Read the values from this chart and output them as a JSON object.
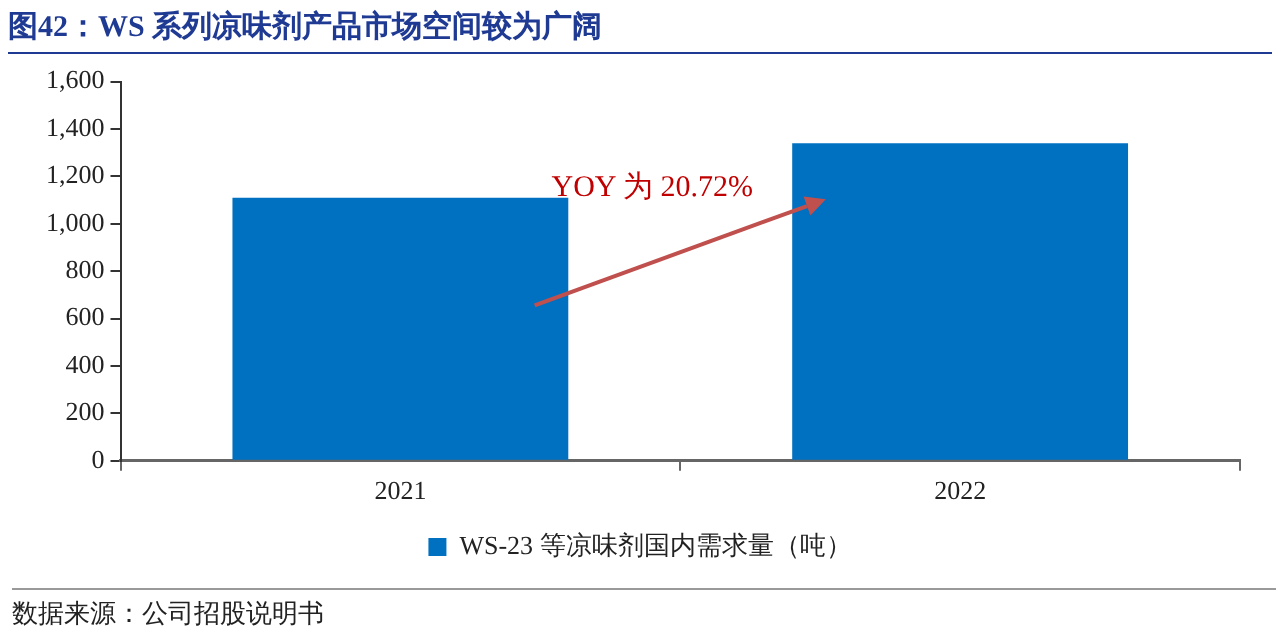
{
  "chart_data": {
    "type": "bar",
    "title": "图42：WS 系列凉味剂产品市场空间较为广阔",
    "categories": [
      "2021",
      "2022"
    ],
    "series": [
      {
        "name": "WS-23 等凉味剂国内需求量（吨）",
        "color": "#0070c0",
        "values": [
          1110,
          1340
        ]
      }
    ],
    "ylim": [
      0,
      1600
    ],
    "yticks": [
      0,
      {
        "value": 200,
        "label": "200"
      },
      {
        "value": 400,
        "label": "400"
      },
      {
        "value": 600,
        "label": "600"
      },
      {
        "value": 800,
        "label": "800"
      },
      {
        "value": 1000,
        "label": "1,000"
      },
      {
        "value": 1200,
        "label": "1,200"
      },
      {
        "value": 1400,
        "label": "1,400"
      },
      {
        "value": 1600,
        "label": "1,600"
      }
    ],
    "grid": false,
    "legend": "bottom",
    "annotations": [
      "YOY 为 20.72%",
      "数据来源：公司招股说明书"
    ]
  }
}
